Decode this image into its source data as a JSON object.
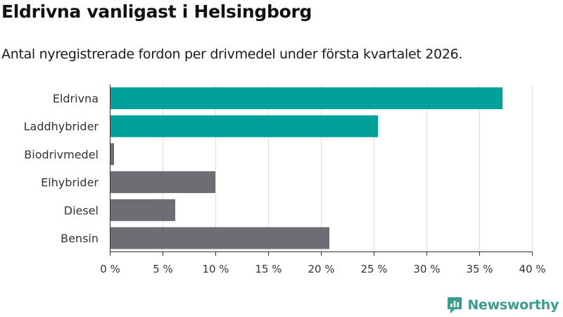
{
  "chart_data": {
    "type": "bar",
    "orientation": "horizontal",
    "title": "Eldrivna vanligast i Helsingborg",
    "subtitle": "Antal nyregistrerade fordon per drivmedel under första kvartalet 2026.",
    "categories": [
      "Eldrivna",
      "Laddhybrider",
      "Biodrivmedel",
      "Elhybrider",
      "Diesel",
      "Bensin"
    ],
    "values": [
      37.2,
      25.4,
      0.4,
      10.0,
      6.2,
      20.8
    ],
    "colors": [
      "#00a19a",
      "#00a19a",
      "#6e6d73",
      "#6e6d73",
      "#6e6d73",
      "#6e6d73"
    ],
    "xlim": [
      0,
      40
    ],
    "xticks": [
      0,
      5,
      10,
      15,
      20,
      25,
      30,
      35,
      40
    ],
    "tick_labels": [
      "0 %",
      "5 %",
      "10 %",
      "15 %",
      "20 %",
      "25 %",
      "30 %",
      "35 %",
      "40 %"
    ],
    "grid": true
  },
  "brand": {
    "name": "Newsworthy",
    "icon": "newsworthy-logo-icon",
    "color": "#3a9d8f"
  }
}
